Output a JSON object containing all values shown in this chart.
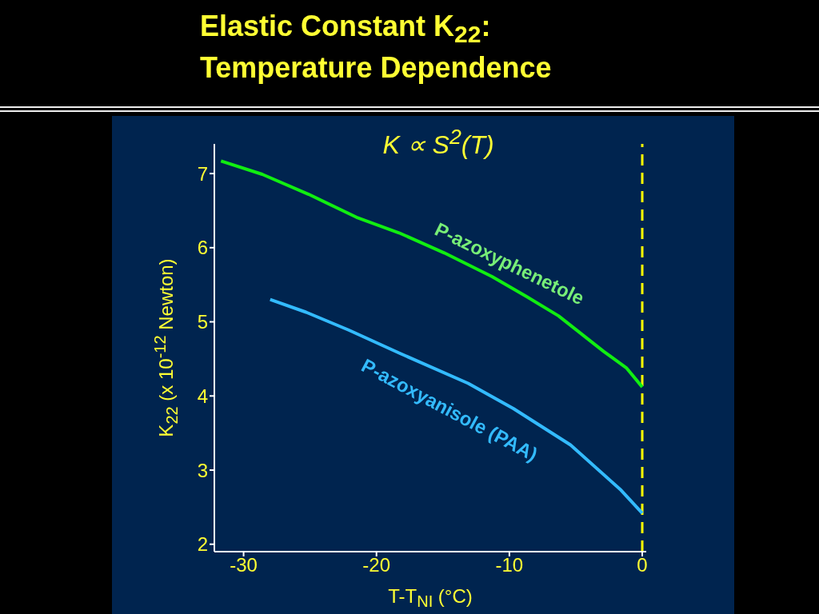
{
  "chart_data": {
    "type": "line",
    "title": "Elastic Constant K$_{22}$:",
    "subtitle": "Temperature Dependence",
    "xlabel": "T-T$_{NI}$ (°C)",
    "ylabel": "K$_{22}$ (x 10$^{-12}$ Newton)",
    "annotations": [
      "K ∝ S$^{2}$(T)"
    ],
    "xlim": [
      -32.2,
      0.3
    ],
    "xticks": [
      -30,
      -20,
      -10,
      0
    ],
    "ylim": [
      1.9,
      7.4
    ],
    "yticks": [
      2,
      3,
      4,
      5,
      6,
      7
    ],
    "ref_lines": [
      {
        "axis": "x",
        "value": 0,
        "color": "#ffff00",
        "line_style": "dashed"
      }
    ],
    "series": [
      {
        "name": "P-azoxyphenetole",
        "color": "#11ee11",
        "x": [
          -31.7,
          -28.6,
          -25.1,
          -21.5,
          -18.3,
          -14.9,
          -11.3,
          -8.7,
          -6.3,
          -2.9,
          -1.2,
          0
        ],
        "values": [
          7.17,
          6.99,
          6.72,
          6.41,
          6.2,
          5.93,
          5.61,
          5.34,
          5.08,
          4.6,
          4.38,
          4.12
        ]
      },
      {
        "name": "P-azoxyanisole (PAA)",
        "color": "#33bbff",
        "x": [
          -28,
          -25.3,
          -22.1,
          -18.3,
          -13.1,
          -9.7,
          -5.4,
          -1.6,
          0
        ],
        "values": [
          5.3,
          5.13,
          4.89,
          4.58,
          4.17,
          3.83,
          3.34,
          2.73,
          2.42
        ]
      }
    ]
  }
}
